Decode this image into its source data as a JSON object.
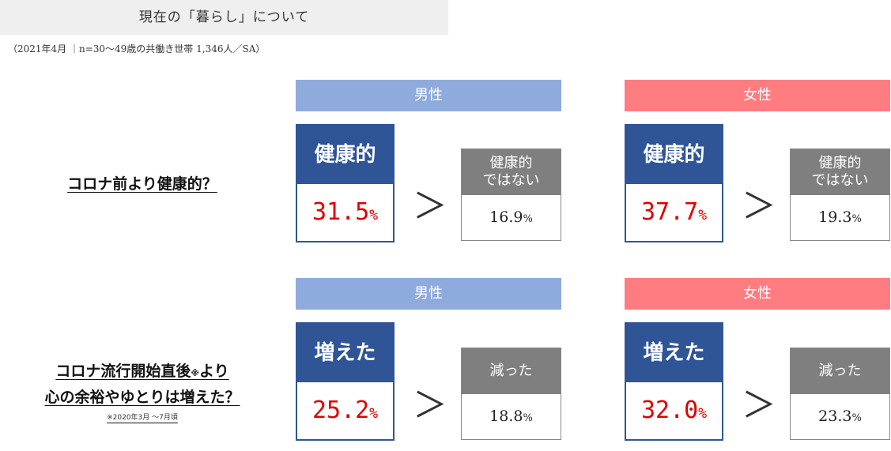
{
  "header": {
    "title": "現在の「暮らし」について",
    "subtitle": "（2021年4月 ｜n=30～49歳の共働き世帯 1,346人／SA）"
  },
  "sections": [
    {
      "question_lines": [
        "コロナ前より健康的？"
      ],
      "note": "",
      "groups": [
        {
          "gender": "男性",
          "main_label": "健康的",
          "main_value": "31.5",
          "main_unit": "%",
          "comparison": "＞",
          "sub_label_lines": [
            "健康的",
            "ではない"
          ],
          "sub_value": "16.9",
          "sub_unit": "%"
        },
        {
          "gender": "女性",
          "main_label": "健康的",
          "main_value": "37.7",
          "main_unit": "%",
          "comparison": "＞",
          "sub_label_lines": [
            "健康的",
            "ではない"
          ],
          "sub_value": "19.3",
          "sub_unit": "%"
        }
      ]
    },
    {
      "question_lines": [
        "コロナ流行開始直後",
        "※",
        "より",
        "心の余裕やゆとりは増えた？"
      ],
      "note": "※2020年3月 ～7月頃",
      "groups": [
        {
          "gender": "男性",
          "main_label": "増えた",
          "main_value": "25.2",
          "main_unit": "%",
          "comparison": "＞",
          "sub_label_lines": [
            "減った"
          ],
          "sub_value": "18.8",
          "sub_unit": "%"
        },
        {
          "gender": "女性",
          "main_label": "増えた",
          "main_value": "32.0",
          "main_unit": "%",
          "comparison": "＞",
          "sub_label_lines": [
            "減った"
          ],
          "sub_value": "23.3",
          "sub_unit": "%"
        }
      ]
    }
  ],
  "colors": {
    "male": "#8faadc",
    "female": "#ff7c80",
    "main_box": "#2f5597",
    "sub_box": "#7f7f7f",
    "highlight_value": "#e00000"
  }
}
